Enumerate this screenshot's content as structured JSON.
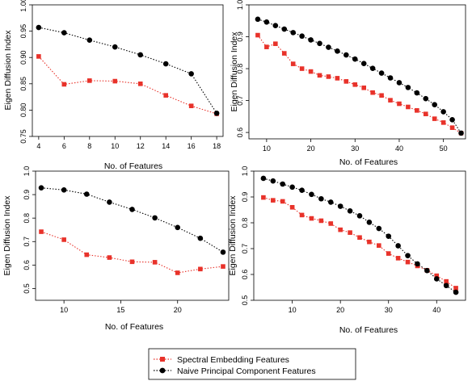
{
  "legend": {
    "items": [
      {
        "label": "Spectral Embedding Features",
        "color": "#e8322a",
        "marker": "square"
      },
      {
        "label": "Naive Principal Component Features",
        "color": "#000000",
        "marker": "circle"
      }
    ]
  },
  "chart_data": [
    {
      "type": "line",
      "xlabel": "No. of Features",
      "ylabel": "Eigen Diffusion Index",
      "xlim": [
        3.5,
        18.5
      ],
      "ylim": [
        0.75,
        1.0
      ],
      "xticks": [
        4,
        6,
        8,
        10,
        12,
        14,
        16,
        18
      ],
      "yticks": [
        0.75,
        0.8,
        0.85,
        0.9,
        0.95,
        1.0
      ],
      "ytick_labels": [
        "0.75",
        "0.80",
        "0.85",
        "0.90",
        "0.95",
        "1.00"
      ],
      "series": [
        {
          "name": "Spectral Embedding Features",
          "color": "#e8322a",
          "marker": "square",
          "x": [
            4,
            6,
            8,
            10,
            12,
            14,
            16,
            18
          ],
          "values": [
            0.902,
            0.849,
            0.856,
            0.855,
            0.85,
            0.828,
            0.808,
            0.793
          ]
        },
        {
          "name": "Naive Principal Component Features",
          "color": "#000000",
          "marker": "circle",
          "x": [
            4,
            6,
            8,
            10,
            12,
            14,
            16,
            18
          ],
          "values": [
            0.957,
            0.947,
            0.933,
            0.92,
            0.905,
            0.888,
            0.869,
            0.794
          ]
        }
      ]
    },
    {
      "type": "line",
      "xlabel": "No. of Features",
      "ylabel": "Eigen Diffusion Index",
      "xlim": [
        6,
        55
      ],
      "ylim": [
        0.58,
        1.0
      ],
      "xticks": [
        10,
        20,
        30,
        40,
        50
      ],
      "yticks": [
        0.6,
        0.7,
        0.8,
        0.9,
        1.0
      ],
      "ytick_labels": [
        "0.6",
        "0.7",
        "0.8",
        "0.9",
        "1.0"
      ],
      "series": [
        {
          "name": "Spectral Embedding Features",
          "color": "#e8322a",
          "marker": "square",
          "x": [
            8,
            10,
            12,
            14,
            16,
            18,
            20,
            22,
            24,
            26,
            28,
            30,
            32,
            34,
            36,
            38,
            40,
            42,
            44,
            46,
            48,
            50,
            52,
            54
          ],
          "values": [
            0.905,
            0.868,
            0.878,
            0.848,
            0.815,
            0.8,
            0.791,
            0.779,
            0.775,
            0.77,
            0.76,
            0.75,
            0.74,
            0.725,
            0.716,
            0.701,
            0.69,
            0.68,
            0.669,
            0.658,
            0.643,
            0.631,
            0.615,
            0.598
          ]
        },
        {
          "name": "Naive Principal Component Features",
          "color": "#000000",
          "marker": "circle",
          "x": [
            8,
            10,
            12,
            14,
            16,
            18,
            20,
            22,
            24,
            26,
            28,
            30,
            32,
            34,
            36,
            38,
            40,
            42,
            44,
            46,
            48,
            50,
            52,
            54
          ],
          "values": [
            0.955,
            0.946,
            0.935,
            0.924,
            0.913,
            0.902,
            0.89,
            0.879,
            0.867,
            0.855,
            0.843,
            0.83,
            0.816,
            0.801,
            0.786,
            0.771,
            0.756,
            0.741,
            0.724,
            0.706,
            0.687,
            0.665,
            0.64,
            0.598
          ]
        }
      ]
    },
    {
      "type": "line",
      "xlabel": "No. of Features",
      "ylabel": "Eigen Diffusion Index",
      "xlim": [
        7.5,
        24.5
      ],
      "ylim": [
        0.45,
        1.0
      ],
      "xticks": [
        10,
        15,
        20
      ],
      "yticks": [
        0.5,
        0.6,
        0.7,
        0.8,
        0.9,
        1.0
      ],
      "ytick_labels": [
        "0.5",
        "0.6",
        "0.7",
        "0.8",
        "0.9",
        "1.0"
      ],
      "series": [
        {
          "name": "Spectral Embedding Features",
          "color": "#e8322a",
          "marker": "square",
          "x": [
            8,
            10,
            12,
            14,
            16,
            18,
            20,
            22,
            24
          ],
          "values": [
            0.742,
            0.708,
            0.644,
            0.632,
            0.614,
            0.612,
            0.567,
            0.583,
            0.594
          ]
        },
        {
          "name": "Naive Principal Component Features",
          "color": "#000000",
          "marker": "circle",
          "x": [
            8,
            10,
            12,
            14,
            16,
            18,
            20,
            22,
            24
          ],
          "values": [
            0.929,
            0.92,
            0.902,
            0.868,
            0.837,
            0.801,
            0.76,
            0.714,
            0.655
          ]
        }
      ]
    },
    {
      "type": "line",
      "xlabel": "No. of Features",
      "ylabel": "Eigen Diffusion Index",
      "xlim": [
        2,
        46
      ],
      "ylim": [
        0.5,
        1.0
      ],
      "xticks": [
        10,
        20,
        30,
        40
      ],
      "yticks": [
        0.5,
        0.6,
        0.7,
        0.8,
        0.9,
        1.0
      ],
      "ytick_labels": [
        "0.5",
        "0.6",
        "0.7",
        "0.8",
        "0.9",
        "1.0"
      ],
      "series": [
        {
          "name": "Spectral Embedding Features",
          "color": "#e8322a",
          "marker": "square",
          "x": [
            4,
            6,
            8,
            10,
            12,
            14,
            16,
            18,
            20,
            22,
            24,
            26,
            28,
            30,
            32,
            34,
            36,
            38,
            40,
            42,
            44
          ],
          "values": [
            0.898,
            0.887,
            0.883,
            0.86,
            0.83,
            0.817,
            0.808,
            0.797,
            0.773,
            0.762,
            0.743,
            0.726,
            0.712,
            0.681,
            0.663,
            0.648,
            0.633,
            0.616,
            0.595,
            0.573,
            0.547
          ]
        },
        {
          "name": "Naive Principal Component Features",
          "color": "#000000",
          "marker": "circle",
          "x": [
            4,
            6,
            8,
            10,
            12,
            14,
            16,
            18,
            20,
            22,
            24,
            26,
            28,
            30,
            32,
            34,
            36,
            38,
            40,
            42,
            44
          ],
          "values": [
            0.972,
            0.962,
            0.95,
            0.938,
            0.926,
            0.91,
            0.893,
            0.88,
            0.864,
            0.846,
            0.827,
            0.802,
            0.778,
            0.748,
            0.711,
            0.673,
            0.641,
            0.615,
            0.583,
            0.557,
            0.531
          ]
        }
      ]
    }
  ]
}
